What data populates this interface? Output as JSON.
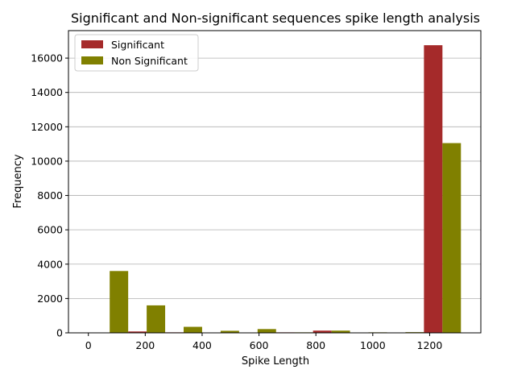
{
  "chart_data": {
    "type": "bar",
    "title": "Significant and Non-significant sequences spike length analysis",
    "xlabel": "Spike Length",
    "ylabel": "Frequency",
    "xlim": [
      -70,
      1380
    ],
    "ylim": [
      0,
      17600
    ],
    "xticks": [
      0,
      200,
      400,
      600,
      800,
      1000,
      1200
    ],
    "yticks": [
      0,
      2000,
      4000,
      6000,
      8000,
      10000,
      12000,
      14000,
      16000
    ],
    "grid": "horizontal",
    "legend_position": "top-left",
    "bin_width": 130,
    "series": [
      {
        "name": "Significant",
        "color": "#a52a2a",
        "bins": [
          {
            "x_start": 10,
            "x_end": 75,
            "value": 0
          },
          {
            "x_start": 140,
            "x_end": 205,
            "value": 80
          },
          {
            "x_start": 270,
            "x_end": 335,
            "value": 30
          },
          {
            "x_start": 400,
            "x_end": 465,
            "value": 20
          },
          {
            "x_start": 530,
            "x_end": 595,
            "value": 20
          },
          {
            "x_start": 660,
            "x_end": 725,
            "value": 30
          },
          {
            "x_start": 790,
            "x_end": 855,
            "value": 130
          },
          {
            "x_start": 920,
            "x_end": 985,
            "value": 20
          },
          {
            "x_start": 1050,
            "x_end": 1115,
            "value": 0
          },
          {
            "x_start": 1180,
            "x_end": 1245,
            "value": 16750
          }
        ]
      },
      {
        "name": "Non Significant",
        "color": "#808000",
        "bins": [
          {
            "x_start": 75,
            "x_end": 140,
            "value": 3600
          },
          {
            "x_start": 205,
            "x_end": 270,
            "value": 1600
          },
          {
            "x_start": 335,
            "x_end": 400,
            "value": 350
          },
          {
            "x_start": 465,
            "x_end": 530,
            "value": 120
          },
          {
            "x_start": 595,
            "x_end": 660,
            "value": 220
          },
          {
            "x_start": 725,
            "x_end": 790,
            "value": 30
          },
          {
            "x_start": 855,
            "x_end": 920,
            "value": 130
          },
          {
            "x_start": 985,
            "x_end": 1050,
            "value": 30
          },
          {
            "x_start": 1115,
            "x_end": 1180,
            "value": 40
          },
          {
            "x_start": 1245,
            "x_end": 1310,
            "value": 11050
          }
        ]
      }
    ]
  }
}
